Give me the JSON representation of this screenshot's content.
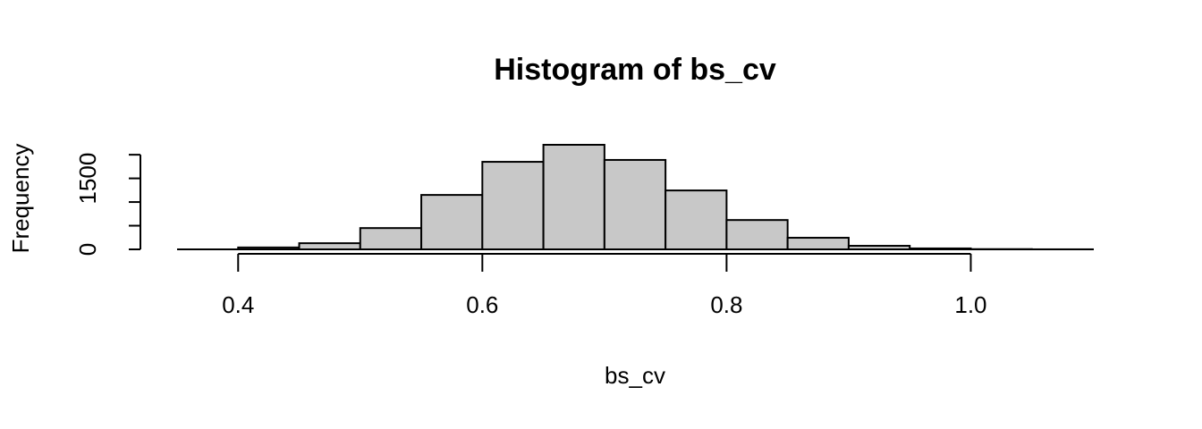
{
  "chart_data": {
    "type": "histogram",
    "title": "Histogram of bs_cv",
    "x_label": "bs_cv",
    "y_label": "Frequency",
    "bins": [
      0.35,
      0.4,
      0.45,
      0.5,
      0.55,
      0.6,
      0.65,
      0.7,
      0.75,
      0.8,
      0.85,
      0.9,
      0.95,
      1.0,
      1.05,
      1.1
    ],
    "values": [
      0,
      40,
      130,
      450,
      1150,
      1850,
      2210,
      1890,
      1245,
      620,
      245,
      75,
      20,
      5,
      1
    ],
    "color": "#c8c8c8",
    "xlim": [
      0.35,
      1.1
    ],
    "xticks": [
      0.4,
      0.6,
      0.8,
      {
        "value": 1.0,
        "label": "1.0"
      }
    ],
    "ylim": [
      0,
      2210
    ],
    "yticks": [
      0,
      1500
    ],
    "yminor_ticks": [
      500,
      1000,
      2000
    ]
  }
}
